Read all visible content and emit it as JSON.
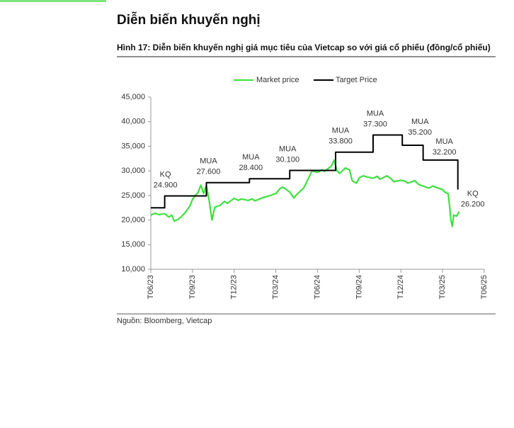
{
  "header": {
    "title": "Diễn biến khuyến nghị",
    "figure_title": "Hình 17: Diễn biến khuyến nghị giá mục tiêu của Vietcap so với giá cổ phiếu (đồng/cổ phiếu)"
  },
  "chart_data": {
    "type": "line",
    "xlim": [
      0,
      24
    ],
    "xticks": [
      {
        "value": 0,
        "label": "T06/23"
      },
      {
        "value": 3,
        "label": "T09/23"
      },
      {
        "value": 6,
        "label": "T12/23"
      },
      {
        "value": 9,
        "label": "T03/24"
      },
      {
        "value": 12,
        "label": "T06/24"
      },
      {
        "value": 15,
        "label": "T09/24"
      },
      {
        "value": 18,
        "label": "T12/24"
      },
      {
        "value": 21,
        "label": "T03/25"
      },
      {
        "value": 24,
        "label": "T06/25"
      }
    ],
    "ylim": [
      10000,
      45000
    ],
    "yticks": [
      {
        "value": 10000,
        "label": "10,000"
      },
      {
        "value": 15000,
        "label": "15,000"
      },
      {
        "value": 20000,
        "label": "20,000"
      },
      {
        "value": 25000,
        "label": "25,000"
      },
      {
        "value": 30000,
        "label": "30,000"
      },
      {
        "value": 35000,
        "label": "35,000"
      },
      {
        "value": 40000,
        "label": "40,000"
      },
      {
        "value": 45000,
        "label": "45,000"
      }
    ],
    "series": [
      {
        "name": "Market price",
        "color": "#3ee03e",
        "x": [
          0,
          0.3,
          0.6,
          1,
          1.3,
          1.5,
          1.7,
          2,
          2.3,
          2.5,
          2.8,
          3,
          3.2,
          3.4,
          3.6,
          3.8,
          4,
          4.2,
          4.4,
          4.6,
          5,
          5.3,
          5.5,
          6,
          6.3,
          6.5,
          7,
          7.3,
          7.5,
          8,
          8.5,
          9,
          9.3,
          9.5,
          10,
          10.3,
          10.5,
          11,
          11.3,
          11.6,
          12,
          12.3,
          12.5,
          13,
          13.2,
          13.4,
          13.6,
          14,
          14.3,
          14.5,
          14.8,
          15,
          15.3,
          15.5,
          16,
          16.3,
          16.5,
          17,
          17.3,
          17.5,
          18,
          18.3,
          18.5,
          19,
          19.3,
          19.5,
          20,
          20.3,
          20.5,
          21,
          21.2,
          21.4,
          21.5,
          21.6,
          21.7,
          21.8,
          22,
          22.2
        ],
        "values": [
          21000,
          21400,
          21100,
          21300,
          20600,
          21000,
          19800,
          20200,
          21000,
          21600,
          22800,
          24200,
          25000,
          25600,
          27100,
          25400,
          27000,
          24000,
          20000,
          22600,
          23000,
          23800,
          23400,
          24400,
          24000,
          24300,
          24000,
          24300,
          23900,
          24500,
          24900,
          25400,
          26400,
          26700,
          25700,
          24500,
          25200,
          26500,
          28200,
          30000,
          29700,
          30200,
          29900,
          31000,
          32200,
          30000,
          29500,
          30600,
          30200,
          28000,
          27500,
          28600,
          29000,
          28800,
          28500,
          28900,
          28300,
          29000,
          28400,
          27800,
          28100,
          27900,
          27500,
          28000,
          27200,
          27000,
          26500,
          26900,
          26700,
          26200,
          25600,
          25400,
          23000,
          20000,
          18700,
          21000,
          20800,
          21700
        ]
      },
      {
        "name": "Target Price",
        "color": "#000000",
        "step": "after",
        "x": [
          0,
          1,
          4,
          7.1,
          10,
          13.3,
          16,
          18.1,
          19.6,
          22.1
        ],
        "values": [
          22500,
          24900,
          27600,
          28400,
          30100,
          33800,
          37300,
          35200,
          32200,
          26200
        ]
      }
    ],
    "annotations": [
      {
        "label": "KQ",
        "value_label": "24.900"
      },
      {
        "label": "MUA",
        "value_label": "27.600"
      },
      {
        "label": "MUA",
        "value_label": "28.400"
      },
      {
        "label": "MUA",
        "value_label": "30.100"
      },
      {
        "label": "MUA",
        "value_label": "33.800"
      },
      {
        "label": "MUA",
        "value_label": "37.300"
      },
      {
        "label": "MUA",
        "value_label": "35.200"
      },
      {
        "label": "MUA",
        "value_label": "32.200"
      },
      {
        "label": "KQ",
        "value_label": "26.200"
      }
    ],
    "source": "Nguồn: Bloomberg, Vietcap"
  }
}
